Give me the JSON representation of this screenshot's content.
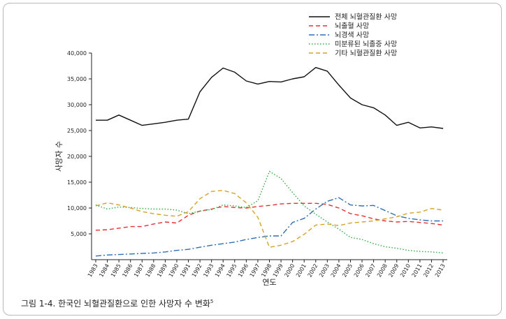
{
  "caption": {
    "text": "그림 1-4. 한국인 뇌혈관질환으로 인한 사망자 수 변화",
    "superscript": "5"
  },
  "chart_data": {
    "type": "line",
    "xlabel": "연도",
    "ylabel": "사망자 수",
    "ylim": [
      0,
      40000
    ],
    "yticks": [
      5000,
      10000,
      15000,
      20000,
      25000,
      30000,
      35000,
      40000
    ],
    "ytick_labels": [
      "5,000",
      "10,000",
      "15,000",
      "20,000",
      "25,000",
      "30,000",
      "35,000",
      "40,000"
    ],
    "x": [
      1983,
      1984,
      1985,
      1986,
      1987,
      1988,
      1989,
      1990,
      1991,
      1992,
      1993,
      1994,
      1995,
      1996,
      1997,
      1998,
      1999,
      2000,
      2001,
      2002,
      2003,
      2004,
      2005,
      2006,
      2007,
      2008,
      2009,
      2010,
      2011,
      2012,
      2013
    ],
    "legend_position": "top-right",
    "grid": false,
    "series": [
      {
        "name": "전체 뇌혈관질환 사망",
        "color": "#111111",
        "dash": "solid",
        "values": [
          27000,
          27000,
          28000,
          27000,
          26000,
          26300,
          26600,
          27000,
          27200,
          32500,
          35300,
          37100,
          36300,
          34600,
          34000,
          34500,
          34400,
          35000,
          35400,
          37200,
          36500,
          33800,
          31300,
          30000,
          29400,
          28000,
          26000,
          26600,
          25500,
          25700,
          25400
        ]
      },
      {
        "name": "뇌출혈 사망",
        "color": "#e5302f",
        "dash": "dash",
        "values": [
          5700,
          5800,
          6100,
          6400,
          6400,
          6900,
          7300,
          7100,
          8600,
          9400,
          9800,
          10300,
          10100,
          10000,
          10300,
          10500,
          10800,
          10900,
          10900,
          10900,
          10700,
          10000,
          8900,
          8500,
          7900,
          7500,
          7300,
          7400,
          7200,
          7000,
          6700
        ]
      },
      {
        "name": "뇌경색 사망",
        "color": "#2d6fb5",
        "dash": "dashdot",
        "values": [
          700,
          900,
          1000,
          1100,
          1200,
          1300,
          1500,
          1800,
          2000,
          2400,
          2800,
          3100,
          3400,
          3900,
          4300,
          4600,
          4600,
          7200,
          8000,
          9800,
          11300,
          12000,
          10600,
          10400,
          10500,
          9500,
          8500,
          8000,
          7700,
          7500,
          7500
        ]
      },
      {
        "name": "미분류된 뇌졸중 사망",
        "color": "#35a845",
        "dash": "dot",
        "values": [
          10600,
          9800,
          10200,
          10100,
          9900,
          9800,
          9800,
          9600,
          8900,
          9400,
          9700,
          10600,
          10400,
          10100,
          11400,
          17100,
          15700,
          13000,
          10400,
          8800,
          7300,
          5900,
          4300,
          3900,
          3100,
          2500,
          2200,
          1800,
          1600,
          1500,
          1300
        ]
      },
      {
        "name": "기타 뇌혈관질환 사망",
        "color": "#d4a326",
        "dash": "dash",
        "values": [
          10400,
          11000,
          10600,
          10000,
          9300,
          8900,
          8600,
          8400,
          9300,
          11800,
          13200,
          13400,
          12800,
          11000,
          8200,
          2400,
          2800,
          3500,
          4900,
          6700,
          6900,
          6600,
          7100,
          7300,
          7500,
          7900,
          8300,
          9000,
          9200,
          9900,
          9600
        ]
      }
    ]
  }
}
